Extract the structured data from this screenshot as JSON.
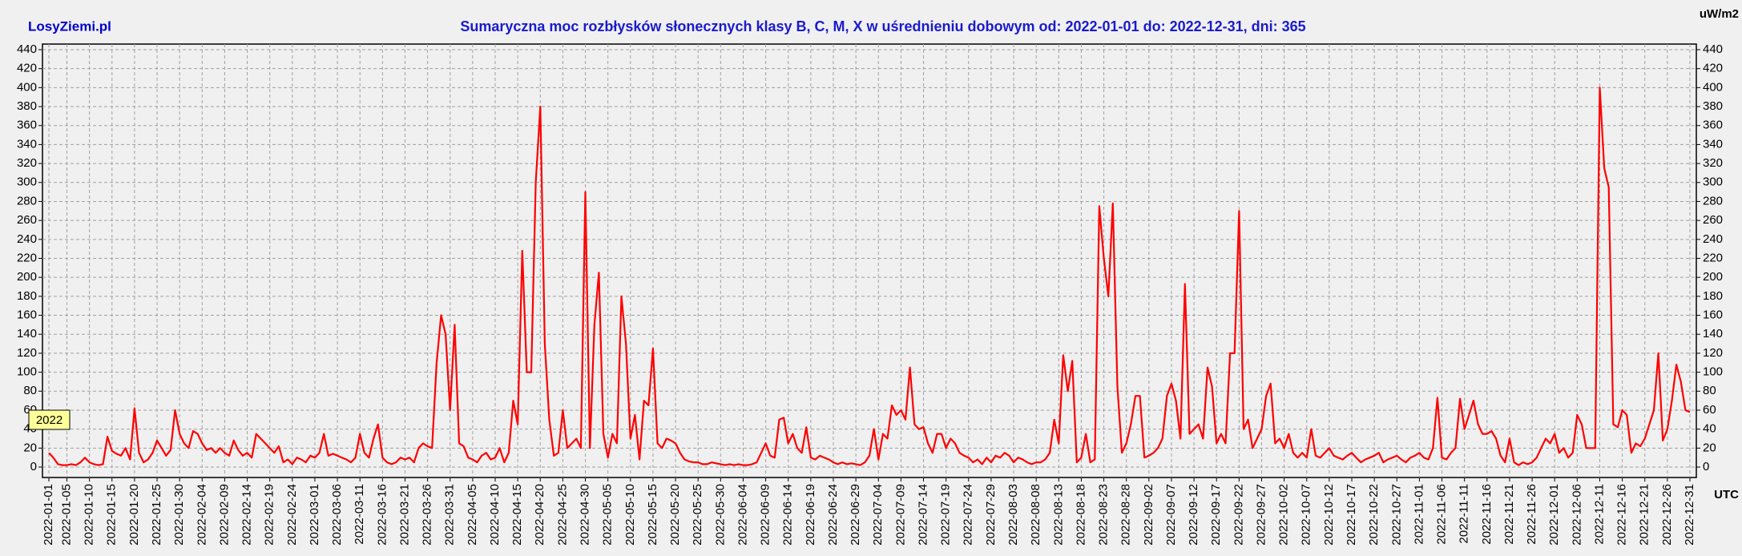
{
  "chart_data": {
    "type": "line",
    "brand": "LosyZiemi.pl",
    "title": "Sumaryczna moc rozbłysków słonecznych klasy B, C, M, X w uśrednieniu dobowym od: 2022-01-01 do: 2022-12-31, dni: 365",
    "y_unit": "uW/m2",
    "x_unit": "UTC",
    "year_label": "2022",
    "grid": true,
    "color": "#ff0000",
    "xlim": [
      0,
      364
    ],
    "ylim": [
      0,
      440
    ],
    "yticks": [
      0,
      20,
      40,
      60,
      80,
      100,
      120,
      140,
      160,
      180,
      200,
      220,
      240,
      260,
      280,
      300,
      320,
      340,
      360,
      380,
      400,
      420,
      440
    ],
    "xticks": [
      {
        "value": 0,
        "label": "2022-01-01"
      },
      {
        "value": 4,
        "label": "2022-01-05"
      },
      {
        "value": 9,
        "label": "2022-01-10"
      },
      {
        "value": 14,
        "label": "2022-01-15"
      },
      {
        "value": 19,
        "label": "2022-01-20"
      },
      {
        "value": 24,
        "label": "2022-01-25"
      },
      {
        "value": 29,
        "label": "2022-01-30"
      },
      {
        "value": 34,
        "label": "2022-02-04"
      },
      {
        "value": 39,
        "label": "2022-02-09"
      },
      {
        "value": 44,
        "label": "2022-02-14"
      },
      {
        "value": 49,
        "label": "2022-02-19"
      },
      {
        "value": 54,
        "label": "2022-02-24"
      },
      {
        "value": 59,
        "label": "2022-03-01"
      },
      {
        "value": 64,
        "label": "2022-03-06"
      },
      {
        "value": 69,
        "label": "2022-03-11"
      },
      {
        "value": 74,
        "label": "2022-03-16"
      },
      {
        "value": 79,
        "label": "2022-03-21"
      },
      {
        "value": 84,
        "label": "2022-03-26"
      },
      {
        "value": 89,
        "label": "2022-03-31"
      },
      {
        "value": 94,
        "label": "2022-04-05"
      },
      {
        "value": 99,
        "label": "2022-04-10"
      },
      {
        "value": 104,
        "label": "2022-04-15"
      },
      {
        "value": 109,
        "label": "2022-04-20"
      },
      {
        "value": 114,
        "label": "2022-04-25"
      },
      {
        "value": 119,
        "label": "2022-04-30"
      },
      {
        "value": 124,
        "label": "2022-05-05"
      },
      {
        "value": 129,
        "label": "2022-05-10"
      },
      {
        "value": 134,
        "label": "2022-05-15"
      },
      {
        "value": 139,
        "label": "2022-05-20"
      },
      {
        "value": 144,
        "label": "2022-05-25"
      },
      {
        "value": 149,
        "label": "2022-05-30"
      },
      {
        "value": 154,
        "label": "2022-06-04"
      },
      {
        "value": 159,
        "label": "2022-06-09"
      },
      {
        "value": 164,
        "label": "2022-06-14"
      },
      {
        "value": 169,
        "label": "2022-06-19"
      },
      {
        "value": 174,
        "label": "2022-06-24"
      },
      {
        "value": 179,
        "label": "2022-06-29"
      },
      {
        "value": 184,
        "label": "2022-07-04"
      },
      {
        "value": 189,
        "label": "2022-07-09"
      },
      {
        "value": 194,
        "label": "2022-07-14"
      },
      {
        "value": 199,
        "label": "2022-07-19"
      },
      {
        "value": 204,
        "label": "2022-07-24"
      },
      {
        "value": 209,
        "label": "2022-07-29"
      },
      {
        "value": 214,
        "label": "2022-08-03"
      },
      {
        "value": 219,
        "label": "2022-08-08"
      },
      {
        "value": 224,
        "label": "2022-08-13"
      },
      {
        "value": 229,
        "label": "2022-08-18"
      },
      {
        "value": 234,
        "label": "2022-08-23"
      },
      {
        "value": 239,
        "label": "2022-08-28"
      },
      {
        "value": 244,
        "label": "2022-09-02"
      },
      {
        "value": 249,
        "label": "2022-09-07"
      },
      {
        "value": 254,
        "label": "2022-09-12"
      },
      {
        "value": 259,
        "label": "2022-09-17"
      },
      {
        "value": 264,
        "label": "2022-09-22"
      },
      {
        "value": 269,
        "label": "2022-09-27"
      },
      {
        "value": 274,
        "label": "2022-10-02"
      },
      {
        "value": 279,
        "label": "2022-10-07"
      },
      {
        "value": 284,
        "label": "2022-10-12"
      },
      {
        "value": 289,
        "label": "2022-10-17"
      },
      {
        "value": 294,
        "label": "2022-10-22"
      },
      {
        "value": 299,
        "label": "2022-10-27"
      },
      {
        "value": 304,
        "label": "2022-11-01"
      },
      {
        "value": 309,
        "label": "2022-11-06"
      },
      {
        "value": 314,
        "label": "2022-11-11"
      },
      {
        "value": 319,
        "label": "2022-11-16"
      },
      {
        "value": 324,
        "label": "2022-11-21"
      },
      {
        "value": 329,
        "label": "2022-11-26"
      },
      {
        "value": 334,
        "label": "2022-12-01"
      },
      {
        "value": 339,
        "label": "2022-12-06"
      },
      {
        "value": 344,
        "label": "2022-12-11"
      },
      {
        "value": 349,
        "label": "2022-12-16"
      },
      {
        "value": 354,
        "label": "2022-12-21"
      },
      {
        "value": 359,
        "label": "2022-12-26"
      },
      {
        "value": 364,
        "label": "2022-12-31"
      }
    ],
    "values": [
      15,
      10,
      3,
      2,
      2,
      3,
      2,
      5,
      10,
      5,
      3,
      2,
      3,
      32,
      17,
      14,
      12,
      20,
      8,
      62,
      15,
      5,
      8,
      15,
      28,
      20,
      12,
      18,
      60,
      35,
      25,
      20,
      38,
      35,
      25,
      18,
      20,
      15,
      20,
      15,
      12,
      28,
      18,
      12,
      15,
      10,
      35,
      30,
      25,
      20,
      15,
      22,
      5,
      8,
      3,
      10,
      8,
      5,
      12,
      10,
      15,
      35,
      12,
      14,
      12,
      10,
      8,
      5,
      10,
      35,
      15,
      10,
      30,
      45,
      10,
      5,
      3,
      5,
      10,
      8,
      10,
      5,
      20,
      25,
      22,
      20,
      110,
      160,
      140,
      60,
      150,
      25,
      22,
      10,
      8,
      5,
      12,
      15,
      8,
      10,
      20,
      5,
      15,
      70,
      45,
      228,
      100,
      100,
      300,
      380,
      130,
      50,
      12,
      15,
      60,
      20,
      25,
      30,
      20,
      290,
      20,
      150,
      205,
      35,
      10,
      35,
      25,
      180,
      130,
      30,
      55,
      8,
      70,
      65,
      125,
      25,
      20,
      30,
      28,
      25,
      15,
      8,
      6,
      5,
      5,
      3,
      3,
      5,
      4,
      3,
      2,
      3,
      2,
      3,
      2,
      2,
      3,
      5,
      15,
      25,
      12,
      10,
      50,
      52,
      25,
      35,
      20,
      15,
      42,
      10,
      8,
      12,
      10,
      8,
      5,
      3,
      5,
      3,
      4,
      3,
      2,
      5,
      12,
      40,
      8,
      35,
      30,
      65,
      55,
      60,
      50,
      105,
      45,
      40,
      42,
      25,
      15,
      35,
      35,
      20,
      30,
      25,
      15,
      12,
      10,
      5,
      8,
      3,
      10,
      5,
      12,
      10,
      15,
      12,
      5,
      10,
      8,
      5,
      3,
      5,
      5,
      8,
      15,
      50,
      25,
      118,
      80,
      112,
      5,
      10,
      35,
      5,
      8,
      275,
      220,
      180,
      278,
      85,
      15,
      25,
      45,
      75,
      75,
      10,
      12,
      15,
      20,
      30,
      75,
      88,
      70,
      30,
      193,
      35,
      40,
      45,
      30,
      105,
      85,
      25,
      35,
      25,
      120,
      120,
      270,
      40,
      50,
      20,
      30,
      40,
      75,
      88,
      25,
      30,
      20,
      35,
      15,
      10,
      15,
      10,
      40,
      12,
      10,
      15,
      20,
      12,
      10,
      8,
      12,
      15,
      10,
      5,
      8,
      10,
      12,
      15,
      5,
      8,
      10,
      12,
      8,
      5,
      10,
      12,
      15,
      10,
      8,
      20,
      73,
      10,
      8,
      15,
      20,
      72,
      40,
      55,
      70,
      45,
      35,
      35,
      38,
      30,
      12,
      5,
      30,
      5,
      2,
      5,
      3,
      5,
      10,
      20,
      30,
      25,
      35,
      15,
      20,
      10,
      15,
      55,
      45,
      20,
      20,
      20,
      400,
      315,
      295,
      45,
      42,
      60,
      55,
      15,
      25,
      22,
      30,
      45,
      60,
      120,
      28,
      40,
      70,
      108,
      90,
      60,
      58
    ]
  }
}
